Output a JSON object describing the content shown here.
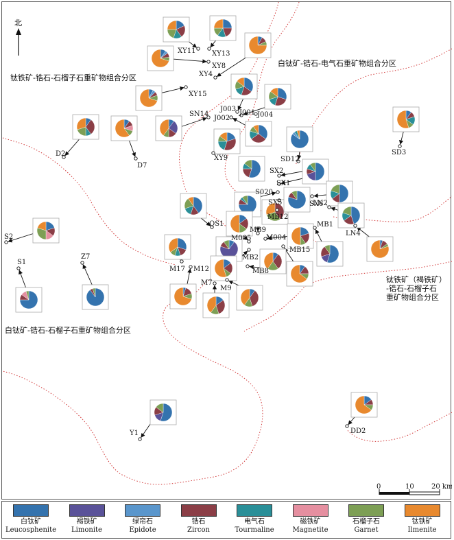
{
  "north_label": "北",
  "zones": [
    {
      "id": "z1",
      "text": "钛铁矿-锆石-石榴子石重矿物组合分区"
    },
    {
      "id": "z2",
      "text": "白钛矿-锆石-电气石重矿物组合分区"
    },
    {
      "id": "z3a",
      "text": "钛铁矿（褐铁矿）"
    },
    {
      "id": "z3b",
      "text": "-锆石-石榴子石"
    },
    {
      "id": "z3c",
      "text": "重矿物组合分区"
    },
    {
      "id": "z4",
      "text": "白钛矿-锆石-石榴子石重矿物组合分区"
    }
  ],
  "scale": {
    "labels": [
      "0",
      "10",
      "20 km"
    ]
  },
  "colors": {
    "Leucosphenite": "#3473ae",
    "Limonite": "#5a5299",
    "Epidote": "#5a96cc",
    "Zircon": "#8b3e46",
    "Tourmaline": "#2a8f98",
    "Magnetite": "#e58fa0",
    "Garnet": "#7d9f55",
    "Ilmenite": "#e8892e"
  },
  "legend": [
    {
      "key": "Leucosphenite",
      "cn": "白钛矿",
      "en": "Leucosphenite"
    },
    {
      "key": "Limonite",
      "cn": "褐铁矿",
      "en": "Limonite"
    },
    {
      "key": "Epidote",
      "cn": "绿帘石",
      "en": "Epidote"
    },
    {
      "key": "Zircon",
      "cn": "锆石",
      "en": "Zircon"
    },
    {
      "key": "Tourmaline",
      "cn": "电气石",
      "en": "Tourmaline"
    },
    {
      "key": "Magnetite",
      "cn": "磁铁矿",
      "en": "Magnetite"
    },
    {
      "key": "Garnet",
      "cn": "石榴子石",
      "en": "Garnet"
    },
    {
      "key": "Ilmenite",
      "cn": "钛铁矿",
      "en": "Ilmenite"
    }
  ],
  "stations": [
    "XY11",
    "XY13",
    "XY8",
    "XY4",
    "XY15",
    "SN14",
    "J003",
    "J002",
    "J001",
    "J004",
    "D2",
    "D7",
    "XY9",
    "SD12",
    "SD3",
    "SX2",
    "SX1",
    "S020",
    "SX5",
    "SX6",
    "LN2",
    "MB12",
    "QS1",
    "LN4",
    "MB1",
    "MB9",
    "M005",
    "M004",
    "MB15",
    "MB2",
    "MB8",
    "M17",
    "M12",
    "M7",
    "M9",
    "S2",
    "S1",
    "Z7",
    "Y1",
    "DD2"
  ],
  "samples": [
    {
      "station": "XY11",
      "values": {
        "Leucosphenite": 18,
        "Zircon": 22,
        "Tourmaline": 15,
        "Garnet": 20,
        "Ilmenite": 25
      }
    },
    {
      "station": "XY13",
      "values": {
        "Leucosphenite": 25,
        "Zircon": 20,
        "Tourmaline": 15,
        "Garnet": 15,
        "Ilmenite": 25
      }
    },
    {
      "station": "XY8",
      "values": {
        "Leucosphenite": 10,
        "Epidote": 5,
        "Zircon": 8,
        "Garnet": 7,
        "Ilmenite": 70
      }
    },
    {
      "station": "XY4",
      "values": {
        "Leucosphenite": 8,
        "Zircon": 10,
        "Garnet": 7,
        "Ilmenite": 75
      }
    },
    {
      "station": "XY15",
      "values": {
        "Leucosphenite": 8,
        "Epidote": 5,
        "Zircon": 7,
        "Garnet": 10,
        "Ilmenite": 70
      }
    },
    {
      "station": "J003",
      "values": {
        "Leucosphenite": 35,
        "Zircon": 20,
        "Tourmaline": 15,
        "Garnet": 15,
        "Ilmenite": 15
      }
    },
    {
      "station": "J001",
      "values": {
        "Leucosphenite": 30,
        "Zircon": 25,
        "Tourmaline": 15,
        "Garnet": 15,
        "Ilmenite": 15
      }
    },
    {
      "station": "SN14",
      "values": {
        "Leucosphenite": 10,
        "Limonite": 25,
        "Zircon": 15,
        "Garnet": 10,
        "Ilmenite": 40
      }
    },
    {
      "station": "D2",
      "values": {
        "Leucosphenite": 10,
        "Zircon": 30,
        "Tourmaline": 10,
        "Garnet": 20,
        "Ilmenite": 30
      }
    },
    {
      "station": "D7",
      "values": {
        "Leucosphenite": 10,
        "Magnetite": 10,
        "Zircon": 10,
        "Garnet": 10,
        "Ilmenite": 60
      }
    },
    {
      "station": "J002",
      "values": {
        "Leucosphenite": 35,
        "Zircon": 30,
        "Tourmaline": 15,
        "Garnet": 10,
        "Ilmenite": 10
      }
    },
    {
      "station": "XY9",
      "values": {
        "Leucosphenite": 20,
        "Zircon": 35,
        "Tourmaline": 20,
        "Garnet": 10,
        "Ilmenite": 15
      }
    },
    {
      "station": "SD12",
      "values": {
        "Leucosphenite": 85,
        "Epidote": 5,
        "Tourmaline": 5,
        "Ilmenite": 5
      }
    },
    {
      "station": "SD3",
      "values": {
        "Leucosphenite": 10,
        "Zircon": 10,
        "Tourmaline": 15,
        "Garnet": 10,
        "Ilmenite": 55
      }
    },
    {
      "station": "SX2",
      "values": {
        "Leucosphenite": 55,
        "Zircon": 20,
        "Tourmaline": 10,
        "Garnet": 15
      }
    },
    {
      "station": "SX1",
      "values": {
        "Leucosphenite": 50,
        "Limonite": 20,
        "Zircon": 10,
        "Tourmaline": 10,
        "Garnet": 10
      }
    },
    {
      "station": "QS1",
      "values": {
        "Leucosphenite": 40,
        "Zircon": 15,
        "Tourmaline": 15,
        "Garnet": 20,
        "Ilmenite": 10
      }
    },
    {
      "station": "S020",
      "values": {
        "Leucosphenite": 75,
        "Zircon": 10,
        "Tourmaline": 5,
        "Garnet": 10
      }
    },
    {
      "station": "MB12",
      "values": {
        "Zircon": 40,
        "Garnet": 30,
        "Ilmenite": 30
      }
    },
    {
      "station": "SX5",
      "values": {
        "Leucosphenite": 80,
        "Zircon": 10,
        "Garnet": 10
      }
    },
    {
      "station": "SX6",
      "values": {
        "Leucosphenite": 50,
        "Zircon": 15,
        "Tourmaline": 15,
        "Garnet": 20
      }
    },
    {
      "station": "LN2",
      "values": {
        "Leucosphenite": 45,
        "Zircon": 20,
        "Tourmaline": 15,
        "Garnet": 20
      }
    },
    {
      "station": "M005",
      "values": {
        "Leucosphenite": 15,
        "Zircon": 20,
        "Garnet": 15,
        "Ilmenite": 50
      }
    },
    {
      "station": "M004",
      "values": {
        "Leucosphenite": 10,
        "Limonite": 70,
        "Zircon": 10,
        "Garnet": 10
      }
    },
    {
      "station": "MB9",
      "values": {
        "Leucosphenite": 20,
        "Zircon": 20,
        "Garnet": 10,
        "Ilmenite": 50
      }
    },
    {
      "station": "MB1",
      "values": {
        "Leucosphenite": 55,
        "Limonite": 15,
        "Zircon": 20,
        "Garnet": 10
      }
    },
    {
      "station": "M17",
      "values": {
        "Leucosphenite": 30,
        "Tourmaline": 10,
        "Zircon": 15,
        "Garnet": 10,
        "Ilmenite": 35
      }
    },
    {
      "station": "MB2",
      "values": {
        "Leucosphenite": 15,
        "Zircon": 20,
        "Garnet": 10,
        "Ilmenite": 55
      }
    },
    {
      "station": "MB8",
      "values": {
        "Leucosphenite": 10,
        "Zircon": 30,
        "Garnet": 20,
        "Ilmenite": 40
      }
    },
    {
      "station": "MB15",
      "values": {
        "Leucosphenite": 10,
        "Zircon": 15,
        "Garnet": 10,
        "Ilmenite": 65
      }
    },
    {
      "station": "LN4",
      "values": {
        "Leucosphenite": 5,
        "Zircon": 10,
        "Garnet": 5,
        "Ilmenite": 80
      }
    },
    {
      "station": "M12",
      "values": {
        "Leucosphenite": 5,
        "Zircon": 15,
        "Garnet": 10,
        "Ilmenite": 70
      }
    },
    {
      "station": "M7",
      "values": {
        "Leucosphenite": 15,
        "Zircon": 30,
        "Garnet": 15,
        "Ilmenite": 40
      }
    },
    {
      "station": "M9",
      "values": {
        "Leucosphenite": 10,
        "Zircon": 35,
        "Garnet": 15,
        "Ilmenite": 40
      }
    },
    {
      "station": "S2",
      "values": {
        "Leucosphenite": 20,
        "Magnetite": 15,
        "Zircon": 15,
        "Garnet": 30,
        "Ilmenite": 20
      }
    },
    {
      "station": "S1",
      "values": {
        "Leucosphenite": 75,
        "Magnetite": 10,
        "Zircon": 10,
        "Garnet": 5
      }
    },
    {
      "station": "Z7",
      "values": {
        "Leucosphenite": 90,
        "Zircon": 5,
        "Garnet": 5
      }
    },
    {
      "station": "Y1",
      "values": {
        "Leucosphenite": 55,
        "Limonite": 15,
        "Zircon": 15,
        "Garnet": 15
      }
    },
    {
      "station": "DD2",
      "values": {
        "Leucosphenite": 15,
        "Zircon": 10,
        "Garnet": 10,
        "Ilmenite": 65
      }
    }
  ]
}
